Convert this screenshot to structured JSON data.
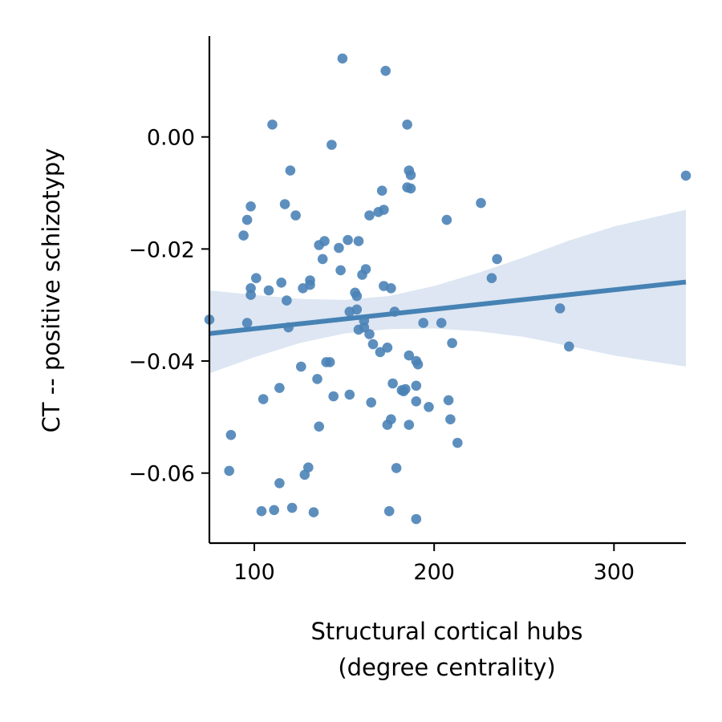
{
  "chart_data": {
    "type": "scatter",
    "title": "",
    "xlabel_lines": [
      "Structural cortical hubs",
      "(degree centrality)"
    ],
    "ylabel": "CT -- positive schizotypy",
    "xlim": [
      75,
      340
    ],
    "ylim": [
      -0.0725,
      0.018
    ],
    "xticks": [
      100,
      200,
      300
    ],
    "xtick_labels": [
      "100",
      "200",
      "300"
    ],
    "yticks": [
      0.0,
      -0.02,
      -0.04,
      -0.06
    ],
    "ytick_labels": [
      "0.00",
      "−0.02",
      "−0.04",
      "−0.06"
    ],
    "grid": false,
    "colors": {
      "points": "#4b83b7",
      "line": "#4682b4",
      "band": "#dde6f2",
      "axes": "#000000"
    },
    "regression": {
      "x": [
        75,
        340
      ],
      "y": [
        -0.0351,
        -0.0259
      ]
    },
    "confidence_band": {
      "x": [
        75,
        100,
        125,
        150,
        175,
        200,
        225,
        250,
        275,
        300,
        340
      ],
      "upper": [
        -0.0274,
        -0.0282,
        -0.0289,
        -0.0291,
        -0.0284,
        -0.0266,
        -0.0242,
        -0.0215,
        -0.0185,
        -0.016,
        -0.013
      ],
      "lower": [
        -0.0422,
        -0.0393,
        -0.0368,
        -0.0351,
        -0.0343,
        -0.0342,
        -0.0347,
        -0.0357,
        -0.0373,
        -0.039,
        -0.041
      ]
    },
    "points": [
      [
        75,
        -0.0326
      ],
      [
        87,
        -0.0532
      ],
      [
        86,
        -0.0596
      ],
      [
        94,
        -0.0176
      ],
      [
        96,
        -0.0148
      ],
      [
        98,
        -0.0124
      ],
      [
        98,
        -0.027
      ],
      [
        98,
        -0.0282
      ],
      [
        96,
        -0.0332
      ],
      [
        101,
        -0.0252
      ],
      [
        104,
        -0.0668
      ],
      [
        105,
        -0.0468
      ],
      [
        108,
        -0.0274
      ],
      [
        110,
        0.0022
      ],
      [
        111,
        -0.0666
      ],
      [
        114,
        -0.0448
      ],
      [
        114,
        -0.0618
      ],
      [
        115,
        -0.026
      ],
      [
        117,
        -0.012
      ],
      [
        118,
        -0.0292
      ],
      [
        119,
        -0.034
      ],
      [
        120,
        -0.006
      ],
      [
        121,
        -0.0662
      ],
      [
        123,
        -0.014
      ],
      [
        126,
        -0.041
      ],
      [
        127,
        -0.027
      ],
      [
        128,
        -0.0603
      ],
      [
        130,
        -0.059
      ],
      [
        131,
        -0.0256
      ],
      [
        131,
        -0.0264
      ],
      [
        133,
        -0.067
      ],
      [
        135,
        -0.0432
      ],
      [
        136,
        -0.0517
      ],
      [
        136,
        -0.0193
      ],
      [
        138,
        -0.0218
      ],
      [
        139,
        -0.0186
      ],
      [
        140,
        -0.0402
      ],
      [
        142,
        -0.0402
      ],
      [
        143,
        -0.0014
      ],
      [
        144,
        -0.0463
      ],
      [
        147,
        -0.0198
      ],
      [
        148,
        -0.0238
      ],
      [
        149,
        0.014
      ],
      [
        152,
        -0.0184
      ],
      [
        153,
        -0.0312
      ],
      [
        153,
        -0.046
      ],
      [
        156,
        -0.0278
      ],
      [
        157,
        -0.0284
      ],
      [
        157,
        -0.0308
      ],
      [
        158,
        -0.0344
      ],
      [
        158,
        -0.0186
      ],
      [
        160,
        -0.0246
      ],
      [
        161,
        -0.034
      ],
      [
        161,
        -0.0328
      ],
      [
        162,
        -0.0236
      ],
      [
        164,
        -0.014
      ],
      [
        164,
        -0.0352
      ],
      [
        165,
        -0.0474
      ],
      [
        166,
        -0.037
      ],
      [
        169,
        -0.0134
      ],
      [
        170,
        -0.0384
      ],
      [
        171,
        -0.0096
      ],
      [
        172,
        -0.013
      ],
      [
        172,
        -0.0266
      ],
      [
        173,
        0.0118
      ],
      [
        174,
        -0.0514
      ],
      [
        174,
        -0.0376
      ],
      [
        175,
        -0.0668
      ],
      [
        176,
        -0.0504
      ],
      [
        176,
        -0.027
      ],
      [
        177,
        -0.044
      ],
      [
        178,
        -0.0312
      ],
      [
        179,
        -0.0591
      ],
      [
        182,
        -0.0452
      ],
      [
        183,
        -0.0454
      ],
      [
        184,
        -0.045
      ],
      [
        185,
        0.0022
      ],
      [
        185,
        -0.009
      ],
      [
        186,
        -0.006
      ],
      [
        186,
        -0.0514
      ],
      [
        186,
        -0.039
      ],
      [
        187,
        -0.0092
      ],
      [
        187,
        -0.0068
      ],
      [
        190,
        -0.0444
      ],
      [
        190,
        -0.04
      ],
      [
        190,
        -0.0472
      ],
      [
        190,
        -0.0682
      ],
      [
        191,
        -0.0406
      ],
      [
        194,
        -0.0332
      ],
      [
        197,
        -0.0482
      ],
      [
        204,
        -0.0332
      ],
      [
        207,
        -0.0148
      ],
      [
        208,
        -0.047
      ],
      [
        209,
        -0.0504
      ],
      [
        210,
        -0.0368
      ],
      [
        213,
        -0.0546
      ],
      [
        226,
        -0.0118
      ],
      [
        232,
        -0.0252
      ],
      [
        235,
        -0.0218
      ],
      [
        270,
        -0.0306
      ],
      [
        275,
        -0.0374
      ],
      [
        340,
        -0.0069
      ]
    ]
  }
}
